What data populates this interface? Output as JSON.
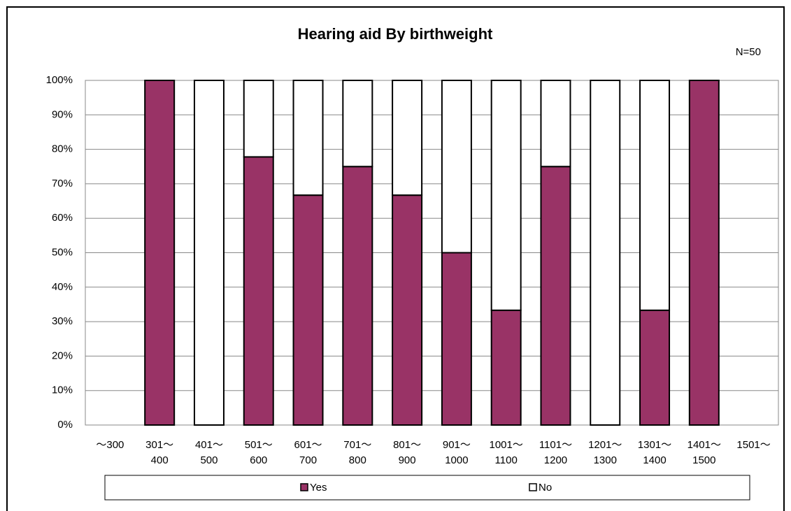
{
  "chart_data": {
    "type": "stacked_bar_100",
    "title": "Hearing aid By birthweight",
    "annotation": "N=50",
    "categories": [
      "～300",
      "301～\n400",
      "401～\n500",
      "501～\n600",
      "601～\n700",
      "701～\n800",
      "801～\n900",
      "901～\n1000",
      "1001～\n1100",
      "1101～\n1200",
      "1201～\n1300",
      "1301～\n1400",
      "1401～\n1500",
      "1501～"
    ],
    "series": [
      {
        "name": "Yes",
        "color": "#993366",
        "values": [
          null,
          100,
          0,
          77.8,
          66.7,
          75,
          66.7,
          50,
          33.3,
          75,
          0,
          33.3,
          100,
          null
        ]
      },
      {
        "name": "No",
        "color": "#ffffff",
        "values": [
          null,
          0,
          100,
          22.2,
          33.3,
          25,
          33.3,
          50,
          66.7,
          25,
          100,
          66.7,
          0,
          null
        ]
      }
    ],
    "ylim": [
      0,
      100
    ],
    "yticks": [
      {
        "value": 0,
        "label": "0%"
      },
      {
        "value": 10,
        "label": "10%"
      },
      {
        "value": 20,
        "label": "20%"
      },
      {
        "value": 30,
        "label": "30%"
      },
      {
        "value": 40,
        "label": "40%"
      },
      {
        "value": 50,
        "label": "50%"
      },
      {
        "value": 60,
        "label": "60%"
      },
      {
        "value": 70,
        "label": "70%"
      },
      {
        "value": 80,
        "label": "80%"
      },
      {
        "value": 90,
        "label": "90%"
      },
      {
        "value": 100,
        "label": "100%"
      }
    ],
    "grid": true,
    "legend": "bottom"
  }
}
